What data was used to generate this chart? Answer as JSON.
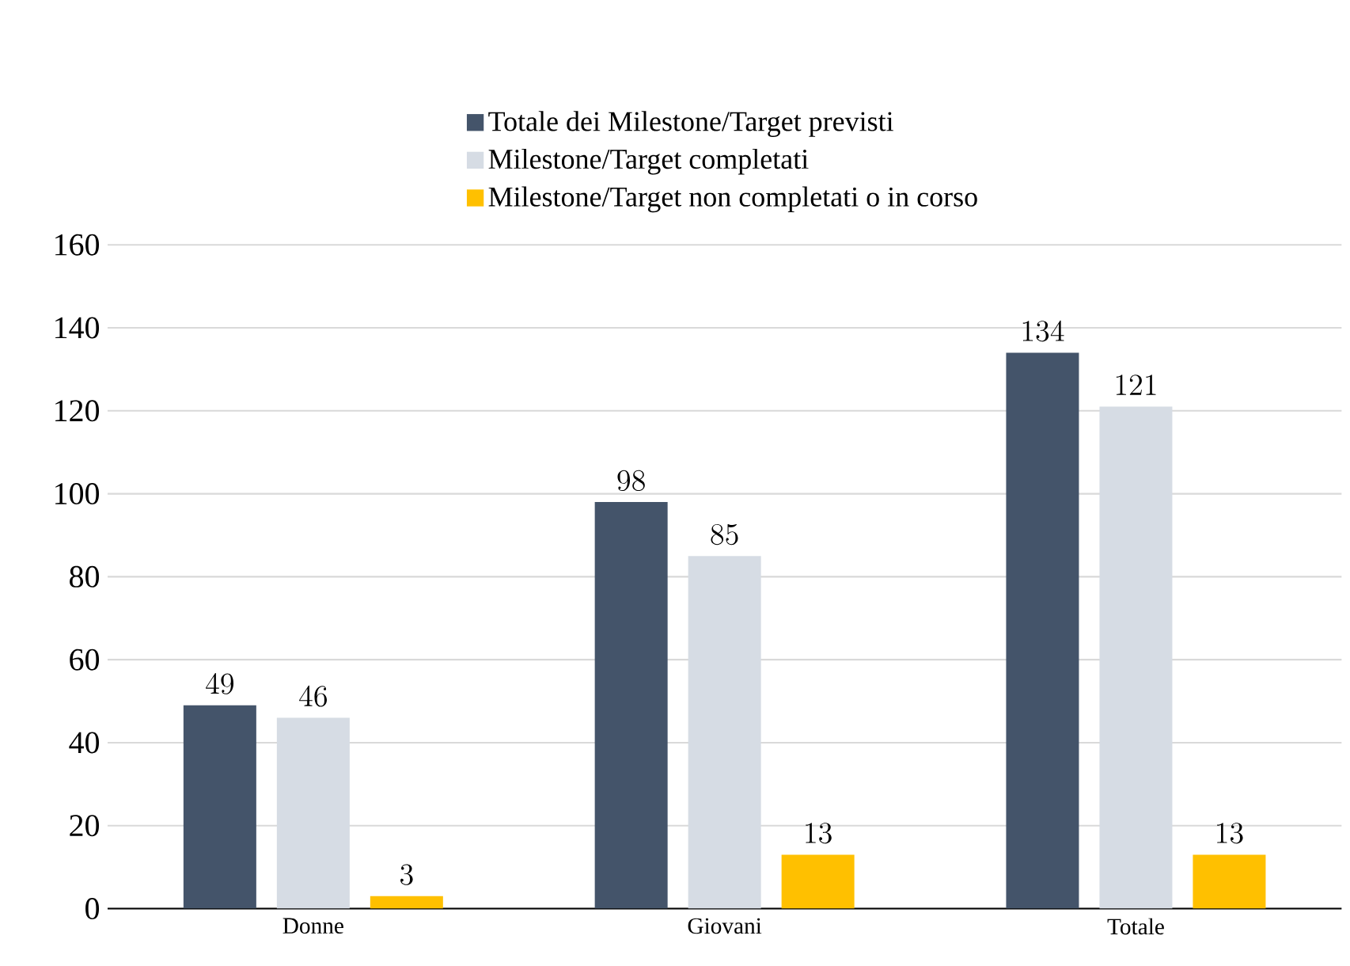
{
  "chart_data": {
    "type": "bar",
    "categories": [
      "Donne",
      "Giovani",
      "Totale"
    ],
    "series": [
      {
        "name": "Totale dei Milestone/Target previsti",
        "color": "#44546a",
        "values": [
          49,
          98,
          134
        ]
      },
      {
        "name": "Milestone/Target completati",
        "color": "#d6dce4",
        "values": [
          46,
          85,
          121
        ]
      },
      {
        "name": "Milestone/Target non completati o in corso",
        "color": "#ffc000",
        "values": [
          3,
          13,
          13
        ]
      }
    ],
    "ylim": [
      0,
      160
    ],
    "yticks": [
      0,
      20,
      40,
      60,
      80,
      100,
      120,
      140,
      160
    ],
    "grid": "y",
    "legend": "top",
    "data_labels": true
  }
}
